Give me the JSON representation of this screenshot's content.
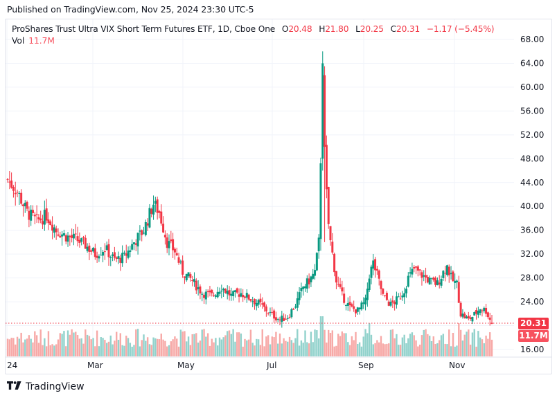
{
  "published": "Published on TradingView.com, Nov 25, 2024 23:30 UTC-5",
  "legend": {
    "title": "ProShares Trust Ultra VIX Short Term Futures ETF, 1D, Cboe One",
    "open_label": "O",
    "open": "20.48",
    "high_label": "H",
    "high": "21.80",
    "low_label": "L",
    "low": "20.25",
    "close_label": "C",
    "close": "20.31",
    "change": "−1.17 (−5.45%)",
    "vol_label": "Vol",
    "vol": "11.7M"
  },
  "badges": {
    "price": "20.31",
    "volume": "11.7M"
  },
  "colors": {
    "up": "#089981",
    "down": "#f23645",
    "vol_up": "#92d2cc",
    "vol_down": "#f7a9a7",
    "grid": "#f0f3fa",
    "price_line": "#f23645"
  },
  "footer": {
    "brand": "TradingView"
  },
  "chart_data": {
    "type": "candlestick",
    "title": "ProShares Trust Ultra VIX Short Term Futures ETF, 1D, Cboe One",
    "symbol_interval": "1D",
    "last": {
      "open": 20.48,
      "high": 21.8,
      "low": 20.25,
      "close": 20.31,
      "change": -1.17,
      "change_pct": -5.45,
      "volume": "11.7M"
    },
    "y_axis": {
      "ticks": [
        "68.00",
        "64.00",
        "60.00",
        "56.00",
        "52.00",
        "48.00",
        "44.00",
        "40.00",
        "36.00",
        "32.00",
        "28.00",
        "24.00",
        "20.00",
        "16.00"
      ],
      "range": [
        16,
        68
      ]
    },
    "x_axis": {
      "ticks": [
        "24",
        "Mar",
        "May",
        "Jul",
        "Sep",
        "Nov"
      ]
    },
    "grid": true,
    "approx_closes_by_period": [
      {
        "period": "early Jan",
        "close": 44.5
      },
      {
        "period": "late Jan",
        "close": 37.5
      },
      {
        "period": "mid Feb",
        "close": 35.0
      },
      {
        "period": "early Mar",
        "close": 32.5
      },
      {
        "period": "mid Mar",
        "close": 31.0
      },
      {
        "period": "late Mar",
        "close": 34.5
      },
      {
        "period": "mid Apr",
        "close": 40.5
      },
      {
        "period": "late Apr",
        "close": 33.0
      },
      {
        "period": "mid May",
        "close": 26.5
      },
      {
        "period": "late May",
        "close": 25.0
      },
      {
        "period": "mid Jun",
        "close": 24.5
      },
      {
        "period": "early Jul",
        "close": 21.0
      },
      {
        "period": "mid Jul",
        "close": 27.0
      },
      {
        "period": "Aug 5 spike high",
        "close": 64.5
      },
      {
        "period": "Aug 6",
        "close": 49.0
      },
      {
        "period": "mid Aug",
        "close": 25.0
      },
      {
        "period": "late Aug",
        "close": 23.0
      },
      {
        "period": "early Sep",
        "close": 29.5
      },
      {
        "period": "mid Sep",
        "close": 24.0
      },
      {
        "period": "early Oct",
        "close": 29.5
      },
      {
        "period": "late Oct",
        "close": 28.0
      },
      {
        "period": "early Nov",
        "close": 30.5
      },
      {
        "period": "mid Nov",
        "close": 21.0
      },
      {
        "period": "Nov 25",
        "close": 20.31
      }
    ]
  }
}
